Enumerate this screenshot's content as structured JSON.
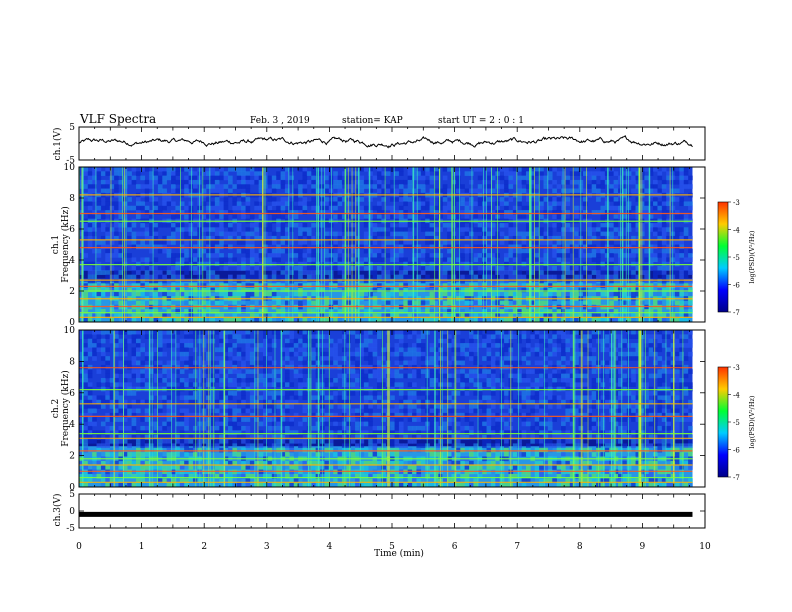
{
  "header": {
    "title": "VLF Spectra",
    "date": "Feb. 3  , 2019",
    "station": "station= KAP",
    "start": "start  UT =  2 : 0  : 1"
  },
  "colorbar": {
    "label": "log(PSD)(V²/Hz)",
    "ticks": [
      -3,
      -4,
      -5,
      -6,
      -7
    ],
    "colors": [
      "#ff3300",
      "#ffcc00",
      "#00ff33",
      "#00ccff",
      "#0000ff",
      "#000088"
    ]
  },
  "chart_data": [
    {
      "type": "line",
      "panel": "ch1-waveform",
      "ylabel": "ch.1(V)",
      "ylim": [
        -5,
        5
      ],
      "yticks": [
        5,
        -5
      ],
      "x_range_min": [
        0,
        9.8
      ],
      "description_values": "noisy waveform around ~0.5 V with amplitude ~1.5 V",
      "color": "#000000"
    },
    {
      "type": "heatmap",
      "panel": "ch1-spectrogram",
      "ylabel": "ch.1\nFrequency (kHz)",
      "ylim": [
        0,
        10
      ],
      "yticks": [
        0,
        2,
        4,
        6,
        8,
        10
      ],
      "xlim": [
        0,
        10
      ],
      "data_end_min": 9.8,
      "bands_khz": [
        0.3,
        0.6,
        1.0,
        1.5,
        2.0,
        2.3,
        2.7,
        3.7,
        4.8,
        5.3,
        6.5,
        7.0,
        8.2
      ],
      "dark_band_khz": [
        2.8,
        3.3
      ],
      "colorbar_range": [
        -7,
        -3
      ]
    },
    {
      "type": "heatmap",
      "panel": "ch2-spectrogram",
      "ylabel": "ch.2\nFrequency (kHz)",
      "ylim": [
        0,
        10
      ],
      "yticks": [
        0,
        2,
        4,
        6,
        8,
        10
      ],
      "xlim": [
        0,
        10
      ],
      "data_end_min": 9.8,
      "bands_khz": [
        0.3,
        0.6,
        1.0,
        1.4,
        1.8,
        2.3,
        3.1,
        3.4,
        4.5,
        5.3,
        6.2,
        7.6
      ],
      "dark_band_khz": [
        2.6,
        3.0
      ],
      "colorbar_range": [
        -7,
        -3
      ]
    },
    {
      "type": "line",
      "panel": "ch3-waveform",
      "ylabel": "ch.3(V)",
      "ylim": [
        -5,
        5
      ],
      "yticks": [
        5,
        0,
        -5
      ],
      "x_range_min": [
        0,
        9.8
      ],
      "constant_value": -1,
      "color": "#000000"
    }
  ],
  "xaxis": {
    "label": "Time (min)",
    "ticks": [
      0,
      1,
      2,
      3,
      4,
      5,
      6,
      7,
      8,
      9,
      10
    ],
    "range": [
      0,
      10
    ]
  }
}
